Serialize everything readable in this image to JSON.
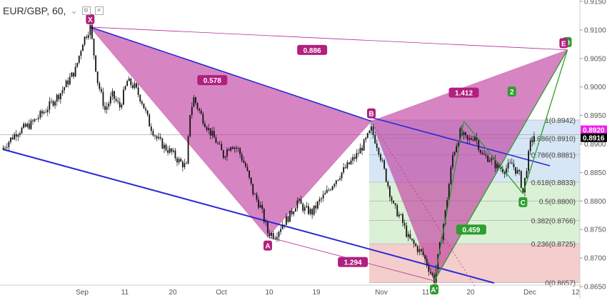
{
  "header": {
    "symbol": "EUR/GBP, 60,",
    "icons": [
      "chevron-down-icon",
      "settings-icon",
      "close-icon"
    ]
  },
  "colors": {
    "candle": "#111111",
    "harmonic_fill": "#c0399f",
    "harmonic_line": "#b52e8f",
    "label_bg": "#b0207e",
    "channel": "#2a2ad6",
    "green": "#2e9e2e",
    "fib_pink": "#f2c4c4",
    "fib_green": "#d5efcf",
    "fib_blue": "#cfe2f2",
    "price_badge_pink": "#ee22ee",
    "price_badge_black": "#000000"
  },
  "chart_data": {
    "type": "candlestick",
    "instrument": "EUR/GBP",
    "timeframe": "60",
    "ylim": [
      0.865,
      0.915
    ],
    "y_ticks": [
      "0.8650",
      "0.8700",
      "0.8750",
      "0.8800",
      "0.8850",
      "0.8900",
      "0.8950",
      "0.9000",
      "0.9050",
      "0.9100",
      "0.9150"
    ],
    "x_ticks": [
      "Sep",
      "11",
      "20",
      "Oct",
      "10",
      "19",
      "Nov",
      "11",
      "20",
      "Dec",
      "12"
    ],
    "price_path": [
      [
        0,
        0.889
      ],
      [
        4,
        0.892
      ],
      [
        8,
        0.8935
      ],
      [
        12,
        0.896
      ],
      [
        16,
        0.899
      ],
      [
        20,
        0.903
      ],
      [
        22,
        0.908
      ],
      [
        24,
        0.9105
      ],
      [
        26,
        0.901
      ],
      [
        28,
        0.896
      ],
      [
        30,
        0.8985
      ],
      [
        32,
        0.8965
      ],
      [
        34,
        0.901
      ],
      [
        36,
        0.9
      ],
      [
        38,
        0.8975
      ],
      [
        40,
        0.8935
      ],
      [
        42,
        0.891
      ],
      [
        44,
        0.8895
      ],
      [
        46,
        0.8885
      ],
      [
        48,
        0.887
      ],
      [
        50,
        0.886
      ],
      [
        51,
        0.8955
      ],
      [
        52,
        0.898
      ],
      [
        54,
        0.895
      ],
      [
        56,
        0.8925
      ],
      [
        58,
        0.8905
      ],
      [
        60,
        0.888
      ],
      [
        62,
        0.89
      ],
      [
        64,
        0.889
      ],
      [
        66,
        0.886
      ],
      [
        68,
        0.8815
      ],
      [
        70,
        0.879
      ],
      [
        72,
        0.8745
      ],
      [
        74,
        0.874
      ],
      [
        76,
        0.876
      ],
      [
        78,
        0.8775
      ],
      [
        80,
        0.88
      ],
      [
        82,
        0.8785
      ],
      [
        84,
        0.878
      ],
      [
        86,
        0.88
      ],
      [
        88,
        0.8815
      ],
      [
        90,
        0.8835
      ],
      [
        92,
        0.885
      ],
      [
        94,
        0.8865
      ],
      [
        96,
        0.888
      ],
      [
        98,
        0.89
      ],
      [
        100,
        0.8925
      ],
      [
        102,
        0.889
      ],
      [
        104,
        0.884
      ],
      [
        106,
        0.879
      ],
      [
        108,
        0.877
      ],
      [
        110,
        0.8735
      ],
      [
        112,
        0.872
      ],
      [
        114,
        0.8705
      ],
      [
        116,
        0.8675
      ],
      [
        117,
        0.8662
      ],
      [
        118,
        0.87
      ],
      [
        120,
        0.878
      ],
      [
        122,
        0.888
      ],
      [
        124,
        0.892
      ],
      [
        126,
        0.8905
      ],
      [
        128,
        0.8915
      ],
      [
        130,
        0.888
      ],
      [
        132,
        0.8875
      ],
      [
        134,
        0.886
      ],
      [
        136,
        0.8855
      ],
      [
        138,
        0.8865
      ],
      [
        140,
        0.8845
      ],
      [
        141,
        0.8815
      ],
      [
        142,
        0.886
      ],
      [
        143,
        0.89
      ],
      [
        144,
        0.8915
      ]
    ],
    "harmonic_pattern": {
      "points": [
        {
          "label": "X",
          "x": 24,
          "price": 0.9105
        },
        {
          "label": "A",
          "x": 72,
          "price": 0.8737
        },
        {
          "label": "B",
          "x": 100,
          "price": 0.894
        },
        {
          "label": "A'",
          "x": 117,
          "price": 0.866
        },
        {
          "label": "C",
          "x": 141,
          "price": 0.8813
        },
        {
          "label": "D",
          "x": 153,
          "price": 0.9065
        },
        {
          "label": "E",
          "x": 152,
          "price": 0.9063
        }
      ],
      "ratios": [
        {
          "text": "0.886",
          "x": 84,
          "price": 0.9065
        },
        {
          "text": "0.578",
          "x": 57,
          "price": 0.9012
        },
        {
          "text": "1.412",
          "x": 125,
          "price": 0.899
        },
        {
          "text": "1.294",
          "x": 95,
          "price": 0.8693
        },
        {
          "text": "0.459",
          "x": 127,
          "price": 0.875
        }
      ],
      "green_labels": [
        {
          "text": "2",
          "x": 138,
          "price": 0.8992
        }
      ]
    },
    "fibonacci": [
      {
        "level": "1",
        "price": 0.8942
      },
      {
        "level": "0.886",
        "price": 0.891
      },
      {
        "level": "0.786",
        "price": 0.8881
      },
      {
        "level": "0.618",
        "price": 0.8833
      },
      {
        "level": "0.5",
        "price": 0.88
      },
      {
        "level": "0.382",
        "price": 0.8766
      },
      {
        "level": "0.236",
        "price": 0.8725
      },
      {
        "level": "0",
        "price": 0.8657
      }
    ],
    "price_badges": [
      {
        "text": "0.8920",
        "price": 0.892,
        "kind": "pink"
      },
      {
        "text": "0.8916",
        "price": 0.8916,
        "kind": "black"
      }
    ]
  }
}
